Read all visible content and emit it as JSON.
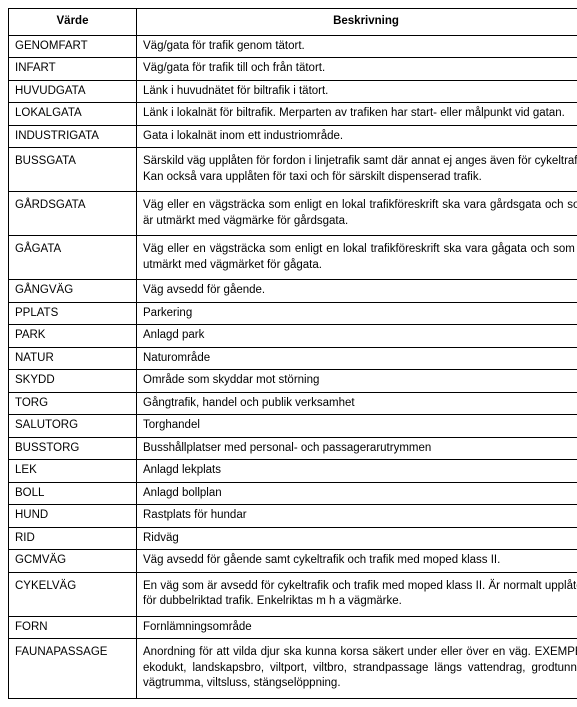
{
  "table": {
    "headers": [
      "Värde",
      "Beskrivning"
    ],
    "rows": [
      {
        "v": "GENOMFART",
        "b": "Väg/gata för trafik genom tätort."
      },
      {
        "v": "INFART",
        "b": "Väg/gata för trafik till och från tätort."
      },
      {
        "v": "HUVUDGATA",
        "b": "Länk i huvudnätet för biltrafik i tätort."
      },
      {
        "v": "LOKALGATA",
        "b": "Länk i lokalnät för biltrafik. Merparten av trafiken har start- eller målpunkt vid gatan."
      },
      {
        "v": "INDUSTRIGATA",
        "b": "Gata i lokalnät inom ett industriområde."
      },
      {
        "v": "BUSSGATA",
        "b": "Särskild väg upplåten för fordon i linjetrafik samt där annat ej anges även för cykeltrafik. Kan också vara upplåten för taxi och för särskilt dispenserad trafik.",
        "tall": true
      },
      {
        "v": "GÅRDSGATA",
        "b": "Väg eller en vägsträcka som enligt en lokal trafikföreskrift ska vara gårdsgata och som är utmärkt med vägmärke för gårdsgata.",
        "tall": true
      },
      {
        "v": "GÅGATA",
        "b": "Väg eller en vägsträcka som enligt en lokal trafikföreskrift ska vara gågata och som är utmärkt med vägmärket för gågata.",
        "tall": true
      },
      {
        "v": "GÅNGVÄG",
        "b": "Väg avsedd för gående."
      },
      {
        "v": "PPLATS",
        "b": "Parkering"
      },
      {
        "v": "PARK",
        "b": "Anlagd park"
      },
      {
        "v": "NATUR",
        "b": "Naturområde"
      },
      {
        "v": "SKYDD",
        "b": "Område som skyddar mot störning"
      },
      {
        "v": "TORG",
        "b": "Gångtrafik, handel och publik verksamhet"
      },
      {
        "v": "SALUTORG",
        "b": "Torghandel"
      },
      {
        "v": "BUSSTORG",
        "b": "Busshållplatser med personal- och passagerarutrymmen"
      },
      {
        "v": "LEK",
        "b": "Anlagd lekplats"
      },
      {
        "v": "BOLL",
        "b": "Anlagd bollplan"
      },
      {
        "v": "HUND",
        "b": "Rastplats för hundar"
      },
      {
        "v": "RID",
        "b": "Ridväg"
      },
      {
        "v": "GCMVÄG",
        "b": "Väg avsedd för gående samt cykeltrafik och trafik med moped klass II."
      },
      {
        "v": "CYKELVÄG",
        "b": "En väg som är avsedd för cykeltrafik och trafik med moped klass II. Är normalt upplåten för dubbelriktad trafik. Enkelriktas m h a vägmärke.",
        "tall": true
      },
      {
        "v": "FORN",
        "b": "Fornlämningsområde"
      },
      {
        "v": "FAUNAPASSAGE",
        "b": "Anordning för att vilda djur ska kunna korsa säkert under eller över en väg. EXEMPEL ekodukt, landskapsbro, viltport, viltbro, strandpassage längs vattendrag, grodtunnel, vägtrumma, viltsluss, stängselöppning.",
        "tall": true
      }
    ]
  }
}
